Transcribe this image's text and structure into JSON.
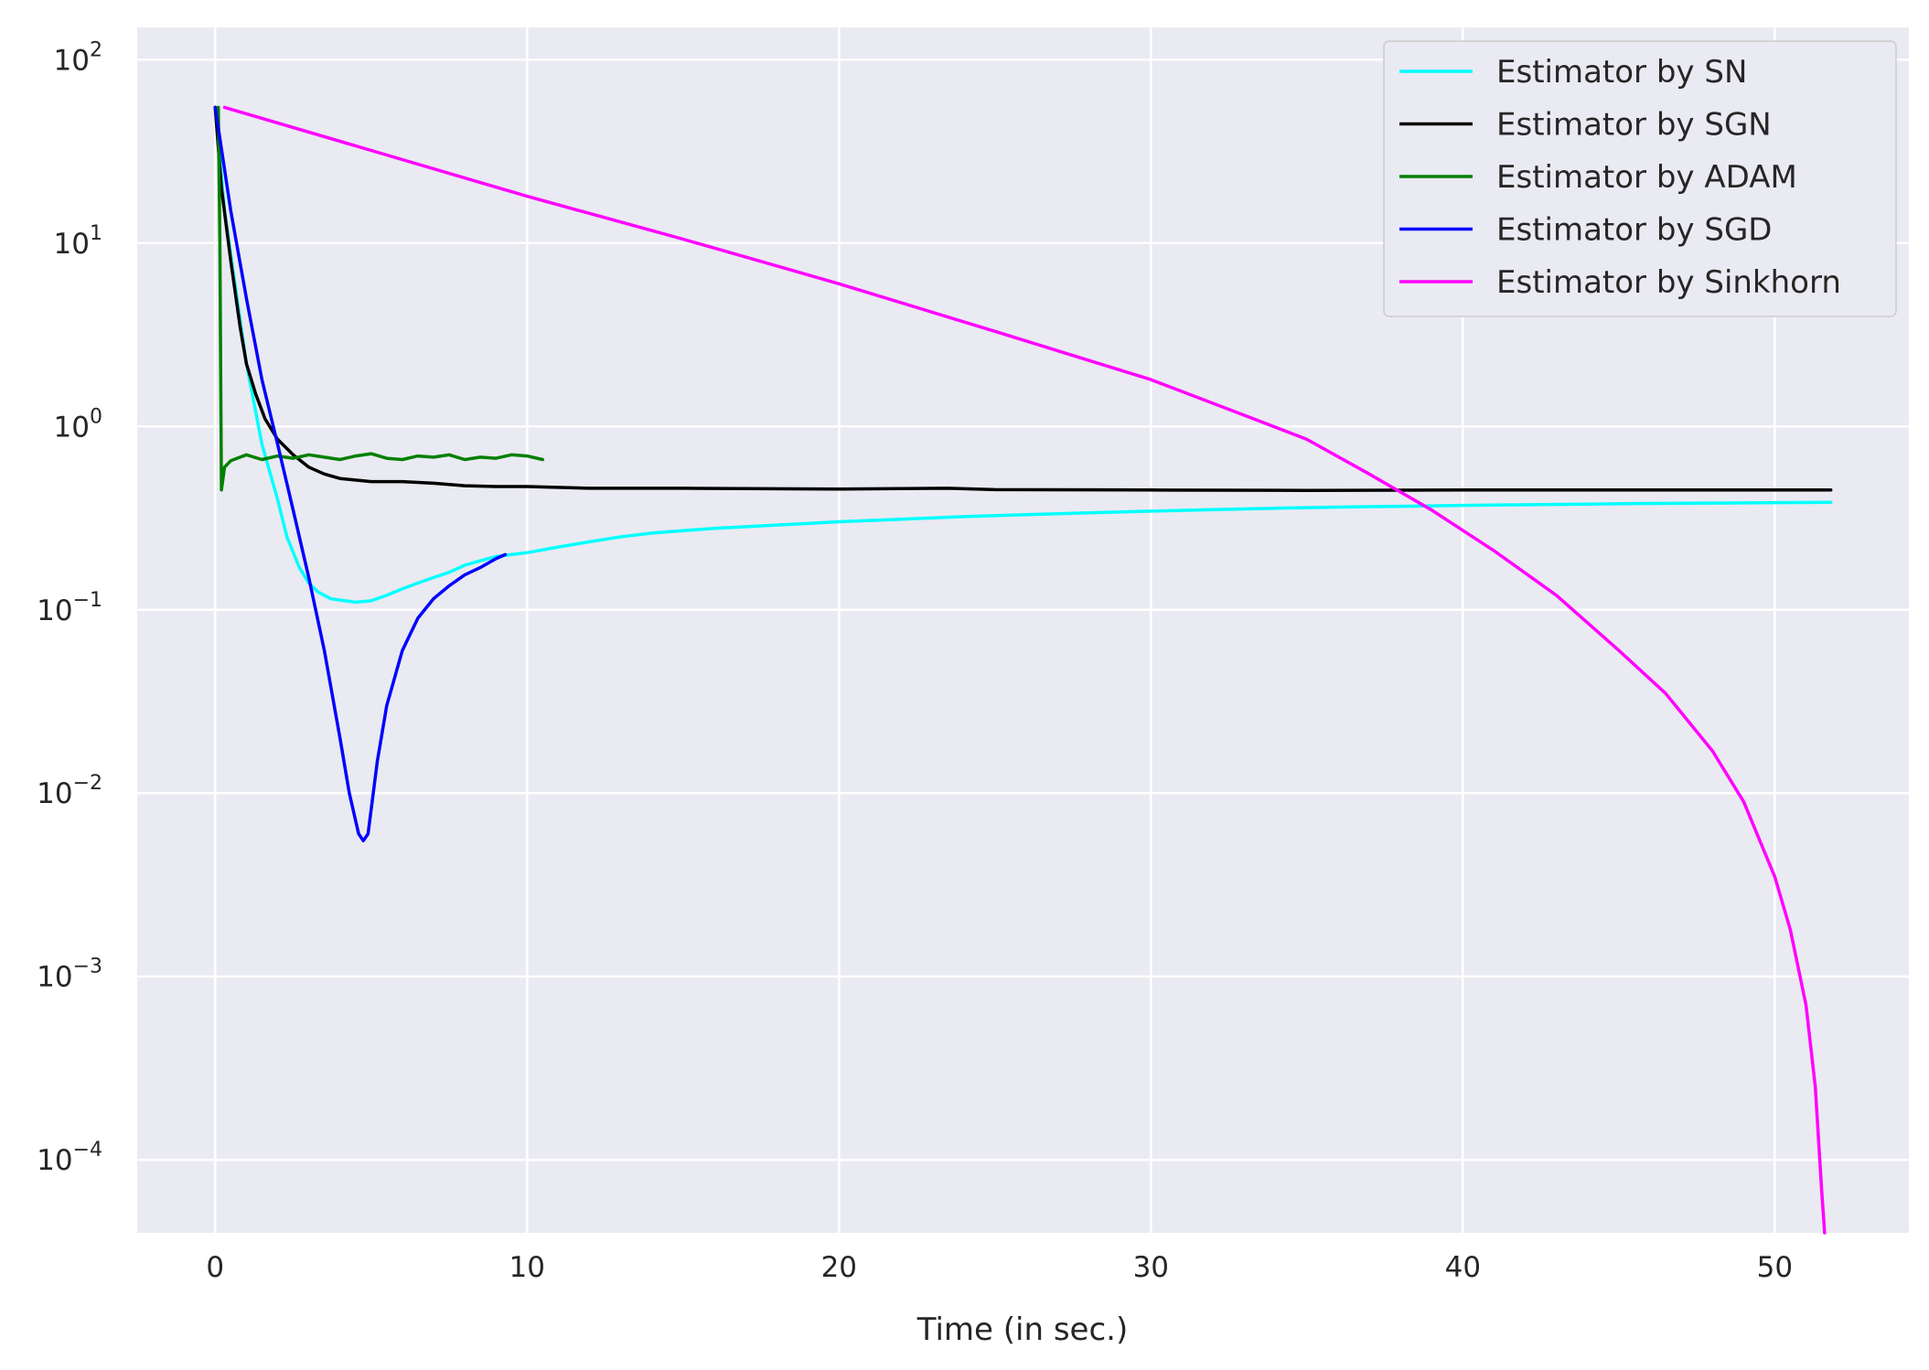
{
  "chart_data": {
    "type": "line",
    "xlabel": "Time (in sec.)",
    "ylabel": "",
    "title": "",
    "yscale": "log",
    "xlim": [
      -2.5,
      54.3
    ],
    "ylim": [
      4e-05,
      150
    ],
    "xticks": [
      0,
      10,
      20,
      30,
      40,
      50
    ],
    "xtick_labels": [
      "0",
      "10",
      "20",
      "30",
      "40",
      "50"
    ],
    "yticks": [
      0.0001,
      0.001,
      0.01,
      0.1,
      1,
      10,
      100
    ],
    "ytick_labels": [
      {
        "base": "10",
        "exp": "−4"
      },
      {
        "base": "10",
        "exp": "−3"
      },
      {
        "base": "10",
        "exp": "−2"
      },
      {
        "base": "10",
        "exp": "−1"
      },
      {
        "base": "10",
        "exp": "0"
      },
      {
        "base": "10",
        "exp": "1"
      },
      {
        "base": "10",
        "exp": "2"
      }
    ],
    "grid": true,
    "legend_position": "top-right",
    "series": [
      {
        "name": "Estimator by SN",
        "color": "#00ffff",
        "x": [
          0,
          0.3,
          0.7,
          1.0,
          1.5,
          2.0,
          2.3,
          2.7,
          3.0,
          3.3,
          3.7,
          4.0,
          4.5,
          5.0,
          5.5,
          6.0,
          6.5,
          7.0,
          7.5,
          8.0,
          8.5,
          9.0,
          9.5,
          10.0,
          11,
          12,
          13,
          14,
          15,
          16,
          18,
          20,
          22,
          24,
          26,
          28,
          30,
          32,
          34,
          36,
          38,
          40,
          42,
          44,
          46,
          48,
          50,
          51.8
        ],
        "y": [
          55,
          15,
          5,
          2.2,
          0.8,
          0.4,
          0.25,
          0.17,
          0.14,
          0.125,
          0.115,
          0.113,
          0.11,
          0.112,
          0.12,
          0.13,
          0.14,
          0.15,
          0.16,
          0.175,
          0.185,
          0.195,
          0.2,
          0.205,
          0.22,
          0.235,
          0.25,
          0.262,
          0.27,
          0.278,
          0.29,
          0.302,
          0.312,
          0.322,
          0.33,
          0.338,
          0.345,
          0.352,
          0.358,
          0.363,
          0.367,
          0.371,
          0.374,
          0.377,
          0.38,
          0.382,
          0.384,
          0.386
        ]
      },
      {
        "name": "Estimator by SGN",
        "color": "#000000",
        "x": [
          0,
          0.2,
          0.5,
          0.8,
          1.0,
          1.3,
          1.6,
          2.0,
          2.5,
          3.0,
          3.5,
          4.0,
          5,
          6,
          7,
          8,
          9,
          10,
          12,
          15,
          20,
          23.5,
          25,
          30,
          35,
          40,
          45,
          51.8
        ],
        "y": [
          55,
          20,
          8,
          3.5,
          2.2,
          1.5,
          1.1,
          0.85,
          0.7,
          0.6,
          0.55,
          0.52,
          0.5,
          0.5,
          0.49,
          0.475,
          0.47,
          0.47,
          0.46,
          0.46,
          0.455,
          0.46,
          0.452,
          0.45,
          0.448,
          0.45,
          0.45,
          0.45
        ]
      },
      {
        "name": "Estimator by ADAM",
        "color": "#008000",
        "x": [
          0.1,
          0.15,
          0.2,
          0.3,
          0.5,
          0.8,
          1.0,
          1.5,
          2.0,
          2.5,
          3.0,
          3.5,
          4.0,
          4.5,
          5.0,
          5.5,
          6.0,
          6.5,
          7.0,
          7.5,
          8.0,
          8.5,
          9.0,
          9.5,
          10.0,
          10.5
        ],
        "y": [
          55,
          10,
          0.45,
          0.6,
          0.65,
          0.68,
          0.7,
          0.66,
          0.69,
          0.67,
          0.7,
          0.68,
          0.66,
          0.69,
          0.71,
          0.67,
          0.66,
          0.69,
          0.68,
          0.7,
          0.66,
          0.68,
          0.67,
          0.7,
          0.69,
          0.66
        ]
      },
      {
        "name": "Estimator by SGD",
        "color": "#0000ff",
        "x": [
          0,
          0.5,
          1.0,
          1.5,
          2.0,
          2.5,
          3.0,
          3.5,
          4.0,
          4.3,
          4.6,
          4.75,
          4.9,
          5.2,
          5.5,
          6.0,
          6.5,
          7.0,
          7.5,
          8.0,
          8.5,
          9.0,
          9.3
        ],
        "y": [
          55,
          15,
          5,
          1.8,
          0.8,
          0.35,
          0.15,
          0.06,
          0.02,
          0.01,
          0.006,
          0.0055,
          0.006,
          0.015,
          0.03,
          0.06,
          0.09,
          0.115,
          0.135,
          0.155,
          0.17,
          0.19,
          0.2
        ]
      },
      {
        "name": "Estimator by Sinkhorn",
        "color": "#ff00ff",
        "x": [
          0.3,
          5,
          10,
          15,
          20,
          25,
          30,
          33,
          35,
          37,
          39,
          41,
          43,
          45,
          46.5,
          48,
          49,
          50,
          50.5,
          51,
          51.3,
          51.5,
          51.6
        ],
        "y": [
          55,
          32,
          18,
          10.5,
          6,
          3.3,
          1.8,
          1.15,
          0.85,
          0.55,
          0.35,
          0.21,
          0.12,
          0.06,
          0.035,
          0.017,
          0.009,
          0.0035,
          0.0018,
          0.0007,
          0.00025,
          7e-05,
          4e-05
        ]
      }
    ]
  }
}
